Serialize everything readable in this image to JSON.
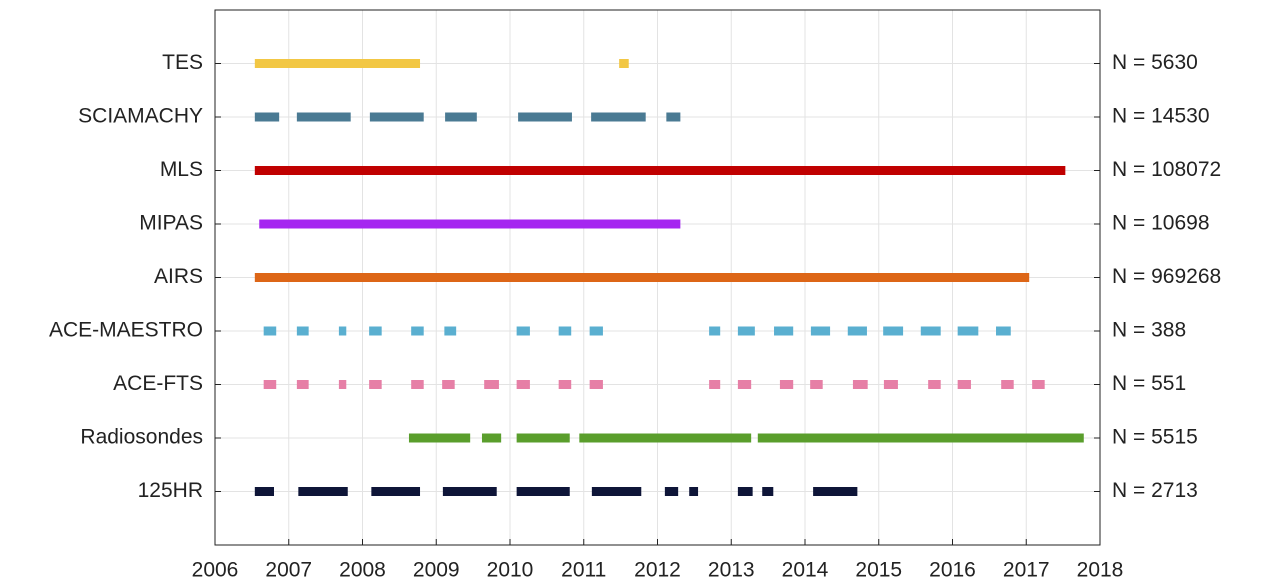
{
  "chart_data": {
    "type": "timeline",
    "xlim": [
      2006,
      2018
    ],
    "xticks": [
      2006,
      2007,
      2008,
      2009,
      2010,
      2011,
      2012,
      2013,
      2014,
      2015,
      2016,
      2017,
      2018
    ],
    "grid": true,
    "series": [
      {
        "name": "TES",
        "color": "#f2c744",
        "count_label": "N = 5630",
        "intervals": [
          [
            2006.54,
            2008.78
          ],
          [
            2011.48,
            2011.61
          ]
        ]
      },
      {
        "name": "SCIAMACHY",
        "color": "#4a7a93",
        "count_label": "N = 14530",
        "intervals": [
          [
            2006.54,
            2006.87
          ],
          [
            2007.11,
            2007.84
          ],
          [
            2008.1,
            2008.83
          ],
          [
            2009.12,
            2009.55
          ],
          [
            2010.11,
            2010.84
          ],
          [
            2011.1,
            2011.84
          ],
          [
            2012.12,
            2012.31
          ]
        ]
      },
      {
        "name": "MLS",
        "color": "#c00000",
        "count_label": "N = 108072",
        "intervals": [
          [
            2006.54,
            2017.53
          ]
        ]
      },
      {
        "name": "MIPAS",
        "color": "#a526f0",
        "count_label": "N = 10698",
        "intervals": [
          [
            2006.6,
            2012.31
          ]
        ]
      },
      {
        "name": "AIRS",
        "color": "#dd6617",
        "count_label": "N = 969268",
        "intervals": [
          [
            2006.54,
            2017.04
          ]
        ]
      },
      {
        "name": "ACE-MAESTRO",
        "color": "#5aafd0",
        "count_label": "N = 388",
        "intervals": [
          [
            2006.66,
            2006.83
          ],
          [
            2007.11,
            2007.27
          ],
          [
            2007.68,
            2007.78
          ],
          [
            2008.09,
            2008.26
          ],
          [
            2008.66,
            2008.83
          ],
          [
            2009.11,
            2009.27
          ],
          [
            2010.09,
            2010.27
          ],
          [
            2010.66,
            2010.83
          ],
          [
            2011.08,
            2011.26
          ],
          [
            2012.7,
            2012.85
          ],
          [
            2013.09,
            2013.32
          ],
          [
            2013.58,
            2013.84
          ],
          [
            2014.08,
            2014.34
          ],
          [
            2014.58,
            2014.84
          ],
          [
            2015.06,
            2015.33
          ],
          [
            2015.57,
            2015.84
          ],
          [
            2016.07,
            2016.35
          ],
          [
            2016.59,
            2016.79
          ]
        ]
      },
      {
        "name": "ACE-FTS",
        "color": "#e67fa6",
        "count_label": "N = 551",
        "intervals": [
          [
            2006.66,
            2006.83
          ],
          [
            2007.11,
            2007.27
          ],
          [
            2007.68,
            2007.78
          ],
          [
            2008.09,
            2008.26
          ],
          [
            2008.66,
            2008.83
          ],
          [
            2009.08,
            2009.25
          ],
          [
            2009.65,
            2009.85
          ],
          [
            2010.09,
            2010.27
          ],
          [
            2010.66,
            2010.83
          ],
          [
            2011.08,
            2011.26
          ],
          [
            2012.7,
            2012.85
          ],
          [
            2013.09,
            2013.27
          ],
          [
            2013.66,
            2013.84
          ],
          [
            2014.07,
            2014.24
          ],
          [
            2014.65,
            2014.85
          ],
          [
            2015.07,
            2015.26
          ],
          [
            2015.67,
            2015.84
          ],
          [
            2016.07,
            2016.25
          ],
          [
            2016.66,
            2016.83
          ],
          [
            2017.08,
            2017.25
          ]
        ]
      },
      {
        "name": "Radiosondes",
        "color": "#5a9e2c",
        "count_label": "N = 5515",
        "intervals": [
          [
            2008.63,
            2009.46
          ],
          [
            2009.62,
            2009.88
          ],
          [
            2010.09,
            2010.81
          ],
          [
            2010.94,
            2013.27
          ],
          [
            2013.36,
            2017.78
          ]
        ]
      },
      {
        "name": "125HR",
        "color": "#0e1538",
        "count_label": "N = 2713",
        "intervals": [
          [
            2006.54,
            2006.8
          ],
          [
            2007.13,
            2007.8
          ],
          [
            2008.12,
            2008.78
          ],
          [
            2009.09,
            2009.82
          ],
          [
            2010.09,
            2010.81
          ],
          [
            2011.11,
            2011.78
          ],
          [
            2012.1,
            2012.28
          ],
          [
            2012.43,
            2012.55
          ],
          [
            2013.09,
            2013.29
          ],
          [
            2013.42,
            2013.57
          ],
          [
            2014.11,
            2014.71
          ]
        ]
      }
    ]
  }
}
